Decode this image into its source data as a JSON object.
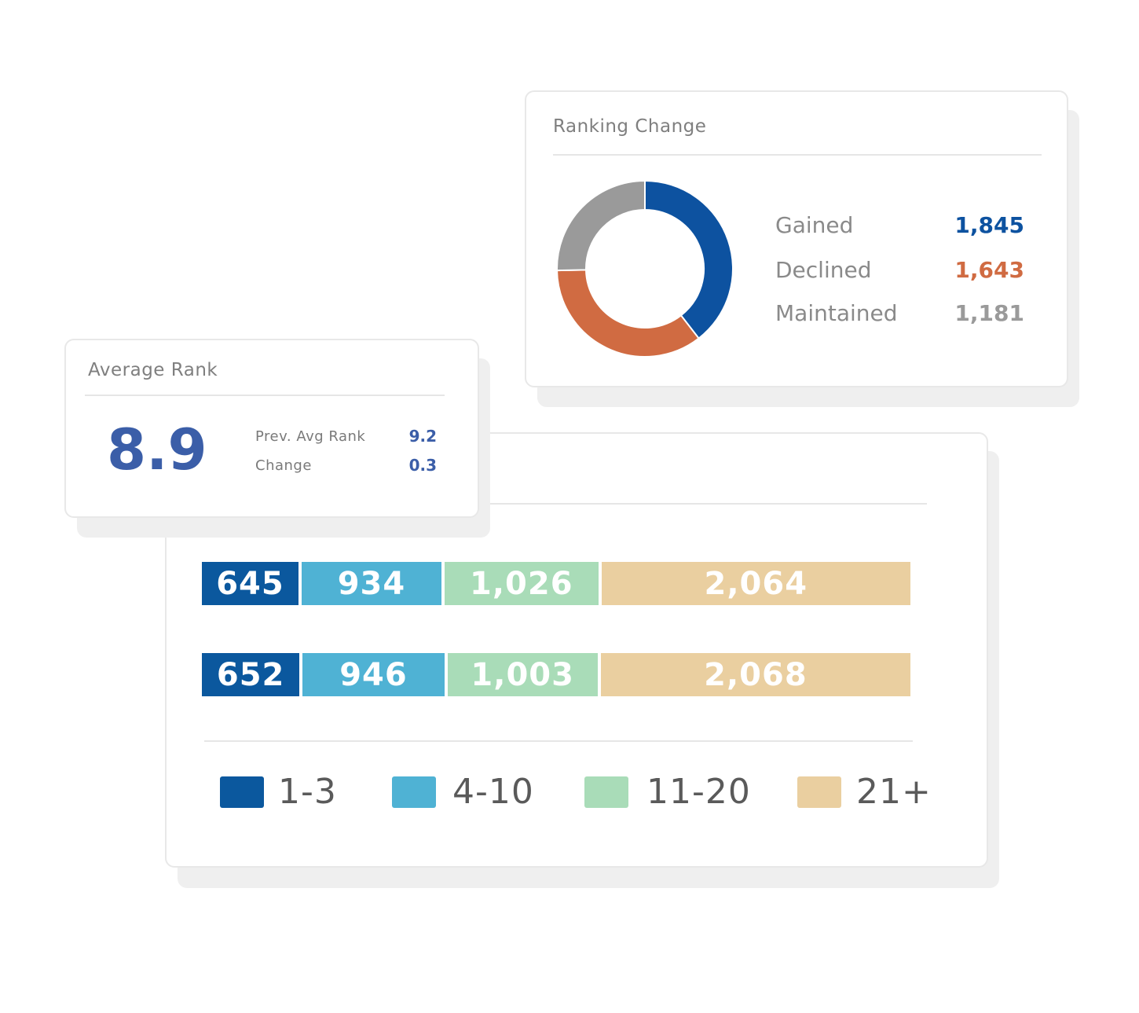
{
  "colors": {
    "gained": "#0d52a0",
    "declined": "#d06b42",
    "maintained": "#9a9a9a",
    "range_1_3": "#0b589e",
    "range_4_10": "#4fb2d4",
    "range_11_20": "#a9dcb8",
    "range_21_plus": "#eacfa0",
    "accent": "#3b5ea8"
  },
  "ranking_change": {
    "title": "Ranking Change",
    "items": [
      {
        "label": "Gained",
        "value": "1,845",
        "count": 1845,
        "color": "#0d52a0"
      },
      {
        "label": "Declined",
        "value": "1,643",
        "count": 1643,
        "color": "#d06b42"
      },
      {
        "label": "Maintained",
        "value": "1,181",
        "count": 1181,
        "color": "#9a9a9a"
      }
    ]
  },
  "average_rank": {
    "title": "Average Rank",
    "value": "8.9",
    "prev_label": "Prev. Avg Rank",
    "prev_value": "9.2",
    "change_label": "Change",
    "change_value": "0.3"
  },
  "distribution": {
    "rows": [
      {
        "segments": [
          {
            "label": "645",
            "value": 645
          },
          {
            "label": "934",
            "value": 934
          },
          {
            "label": "1,026",
            "value": 1026
          },
          {
            "label": "2,064",
            "value": 2064
          }
        ]
      },
      {
        "segments": [
          {
            "label": "652",
            "value": 652
          },
          {
            "label": "946",
            "value": 946
          },
          {
            "label": "1,003",
            "value": 1003
          },
          {
            "label": "2,068",
            "value": 2068
          }
        ]
      }
    ],
    "legend": [
      {
        "label": "1-3",
        "color": "#0b589e"
      },
      {
        "label": "4-10",
        "color": "#4fb2d4"
      },
      {
        "label": "11-20",
        "color": "#a9dcb8"
      },
      {
        "label": "21+",
        "color": "#eacfa0"
      }
    ]
  }
}
